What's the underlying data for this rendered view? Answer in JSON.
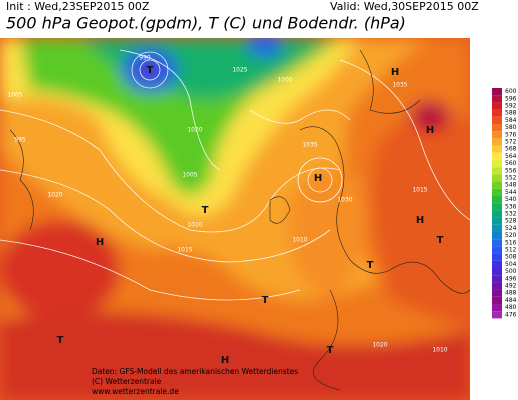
{
  "header": {
    "init": "Init : Wed,23SEP2015 00Z",
    "valid": "Valid: Wed,30SEP2015 00Z",
    "title": "500 hPa Geopot.(gpdm), T (C) und Bodendr. (hPa)"
  },
  "legend": [
    {
      "label": "600",
      "color": "#9a0a55"
    },
    {
      "label": "596",
      "color": "#b80e40"
    },
    {
      "label": "592",
      "color": "#d21c28"
    },
    {
      "label": "588",
      "color": "#e4341e"
    },
    {
      "label": "584",
      "color": "#ee521e"
    },
    {
      "label": "580",
      "color": "#f27020"
    },
    {
      "label": "576",
      "color": "#f68e26"
    },
    {
      "label": "572",
      "color": "#f9ac30"
    },
    {
      "label": "568",
      "color": "#fcca3a"
    },
    {
      "label": "564",
      "color": "#fde846"
    },
    {
      "label": "560",
      "color": "#e2ee3c"
    },
    {
      "label": "556",
      "color": "#c2e432"
    },
    {
      "label": "552",
      "color": "#9cdc28"
    },
    {
      "label": "548",
      "color": "#74d020"
    },
    {
      "label": "544",
      "color": "#4cc62a"
    },
    {
      "label": "540",
      "color": "#26bc40"
    },
    {
      "label": "536",
      "color": "#14b25c"
    },
    {
      "label": "532",
      "color": "#0aa87a"
    },
    {
      "label": "528",
      "color": "#0a9e98"
    },
    {
      "label": "524",
      "color": "#0c94b6"
    },
    {
      "label": "520",
      "color": "#1480d2"
    },
    {
      "label": "516",
      "color": "#1e6ce6"
    },
    {
      "label": "512",
      "color": "#2858f0"
    },
    {
      "label": "508",
      "color": "#3244f0"
    },
    {
      "label": "504",
      "color": "#3c32e4"
    },
    {
      "label": "500",
      "color": "#4828d0"
    },
    {
      "label": "496",
      "color": "#5a1ebc"
    },
    {
      "label": "492",
      "color": "#6e14a8"
    },
    {
      "label": "488",
      "color": "#800c96"
    },
    {
      "label": "484",
      "color": "#8c0c84"
    },
    {
      "label": "480",
      "color": "#9616a0"
    },
    {
      "label": "476",
      "color": "#a02ab4"
    }
  ],
  "map_labels": [
    "H",
    "H",
    "H",
    "H",
    "H",
    "H",
    "T",
    "T",
    "T",
    "T",
    "T",
    "T",
    "T",
    "1035",
    "1035",
    "1020",
    "1020",
    "1015",
    "1010",
    "1005",
    "1000",
    "995",
    "990",
    "1025",
    "1030",
    "1010",
    "1015",
    "1020",
    "1005",
    "1010"
  ],
  "footer": [
    "Daten: GFS-Modell des amerikanischen Wetterdienstes",
    "(C) Wetterzentrale",
    "www.wetterzentrale.de"
  ]
}
